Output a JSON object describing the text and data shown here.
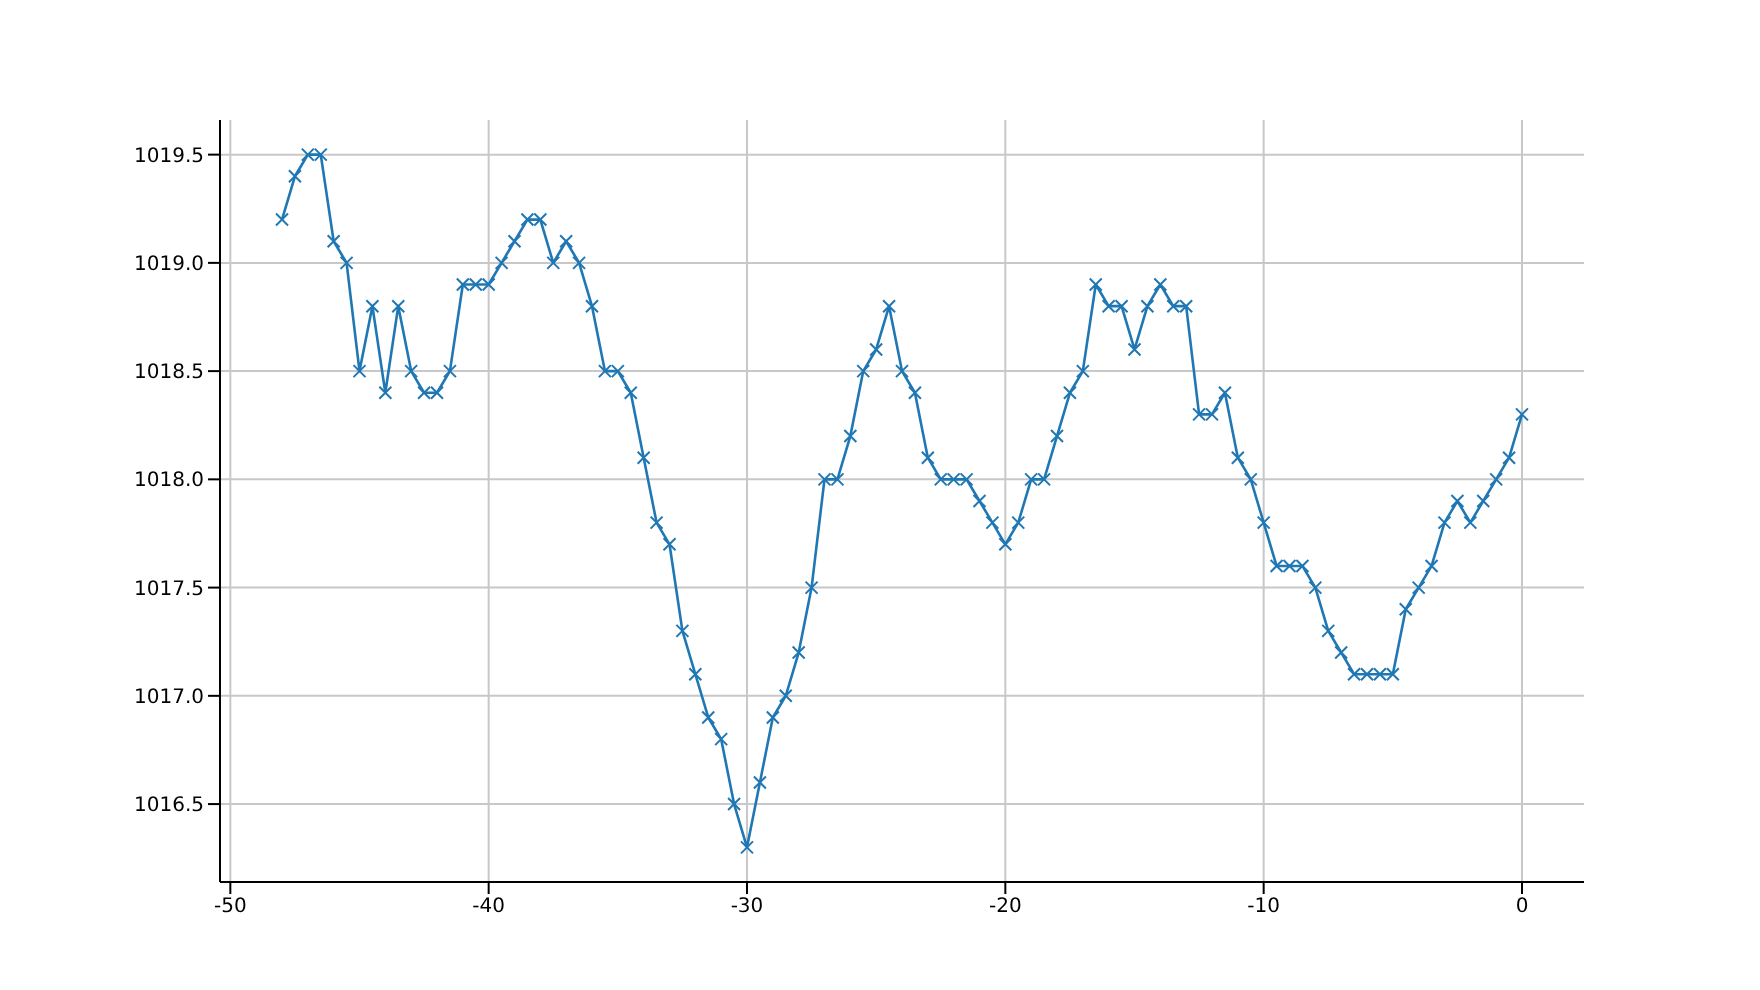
{
  "chart_data": {
    "type": "line",
    "x": [
      -48,
      -47.5,
      -47,
      -46.5,
      -46,
      -45.5,
      -45,
      -44.5,
      -44,
      -43.5,
      -43,
      -42.5,
      -42,
      -41.5,
      -41,
      -40.5,
      -40,
      -39.5,
      -39,
      -38.5,
      -38,
      -37.5,
      -37,
      -36.5,
      -36,
      -35.5,
      -35,
      -34.5,
      -34,
      -33.5,
      -33,
      -32.5,
      -32,
      -31.5,
      -31,
      -30.5,
      -30,
      -29.5,
      -29,
      -28.5,
      -28,
      -27.5,
      -27,
      -26.5,
      -26,
      -25.5,
      -25,
      -24.5,
      -24,
      -23.5,
      -23,
      -22.5,
      -22,
      -21.5,
      -21,
      -20.5,
      -20,
      -19.5,
      -19,
      -18.5,
      -18,
      -17.5,
      -17,
      -16.5,
      -16,
      -15.5,
      -15,
      -14.5,
      -14,
      -13.5,
      -13,
      -12.5,
      -12,
      -11.5,
      -11,
      -10.5,
      -10,
      -9.5,
      -9,
      -8.5,
      -8,
      -7.5,
      -7,
      -6.5,
      -6,
      -5.5,
      -5,
      -4.5,
      -4,
      -3.5,
      -3,
      -2.5,
      -2,
      -1.5,
      -1,
      -0.5,
      0
    ],
    "series": [
      {
        "color": "#1f77b4",
        "values": [
          1019.2,
          1019.4,
          1019.5,
          1019.5,
          1019.1,
          1019.0,
          1018.5,
          1018.8,
          1018.4,
          1018.8,
          1018.5,
          1018.4,
          1018.4,
          1018.5,
          1018.9,
          1018.9,
          1018.9,
          1019.0,
          1019.1,
          1019.2,
          1019.2,
          1019.0,
          1019.1,
          1019.0,
          1018.8,
          1018.5,
          1018.5,
          1018.4,
          1018.1,
          1017.8,
          1017.7,
          1017.3,
          1017.1,
          1016.9,
          1016.8,
          1016.5,
          1016.3,
          1016.6,
          1016.9,
          1017.0,
          1017.2,
          1017.5,
          1018.0,
          1018.0,
          1018.2,
          1018.5,
          1018.6,
          1018.8,
          1018.5,
          1018.4,
          1018.1,
          1018.0,
          1018.0,
          1018.0,
          1017.9,
          1017.8,
          1017.7,
          1017.8,
          1018.0,
          1018.0,
          1018.2,
          1018.4,
          1018.5,
          1018.9,
          1018.8,
          1018.8,
          1018.6,
          1018.8,
          1018.9,
          1018.8,
          1018.8,
          1018.3,
          1018.3,
          1018.4,
          1018.1,
          1018.0,
          1017.8,
          1017.6,
          1017.6,
          1017.6,
          1017.5,
          1017.3,
          1017.2,
          1017.1,
          1017.1,
          1017.1,
          1017.1,
          1017.4,
          1017.5,
          1017.6,
          1017.8,
          1017.9,
          1017.8,
          1017.9,
          1018.0,
          1018.1,
          1018.3
        ]
      }
    ],
    "xlim": [
      -50.4,
      2.4
    ],
    "xticks": [
      -50,
      -40,
      -30,
      -20,
      -10,
      0
    ],
    "ylim": [
      1016.14,
      1019.66
    ],
    "yticks": [
      {
        "value": 1016.5,
        "label": "1016.5"
      },
      {
        "value": 1017,
        "label": "1017.0"
      },
      {
        "value": 1017.5,
        "label": "1017.5"
      },
      {
        "value": 1018,
        "label": "1018.0"
      },
      {
        "value": 1018.5,
        "label": "1018.5"
      },
      {
        "value": 1019,
        "label": "1019.0"
      },
      {
        "value": 1019.5,
        "label": "1019.5"
      }
    ],
    "grid": true,
    "marker": "cross",
    "line_style": "solid"
  }
}
